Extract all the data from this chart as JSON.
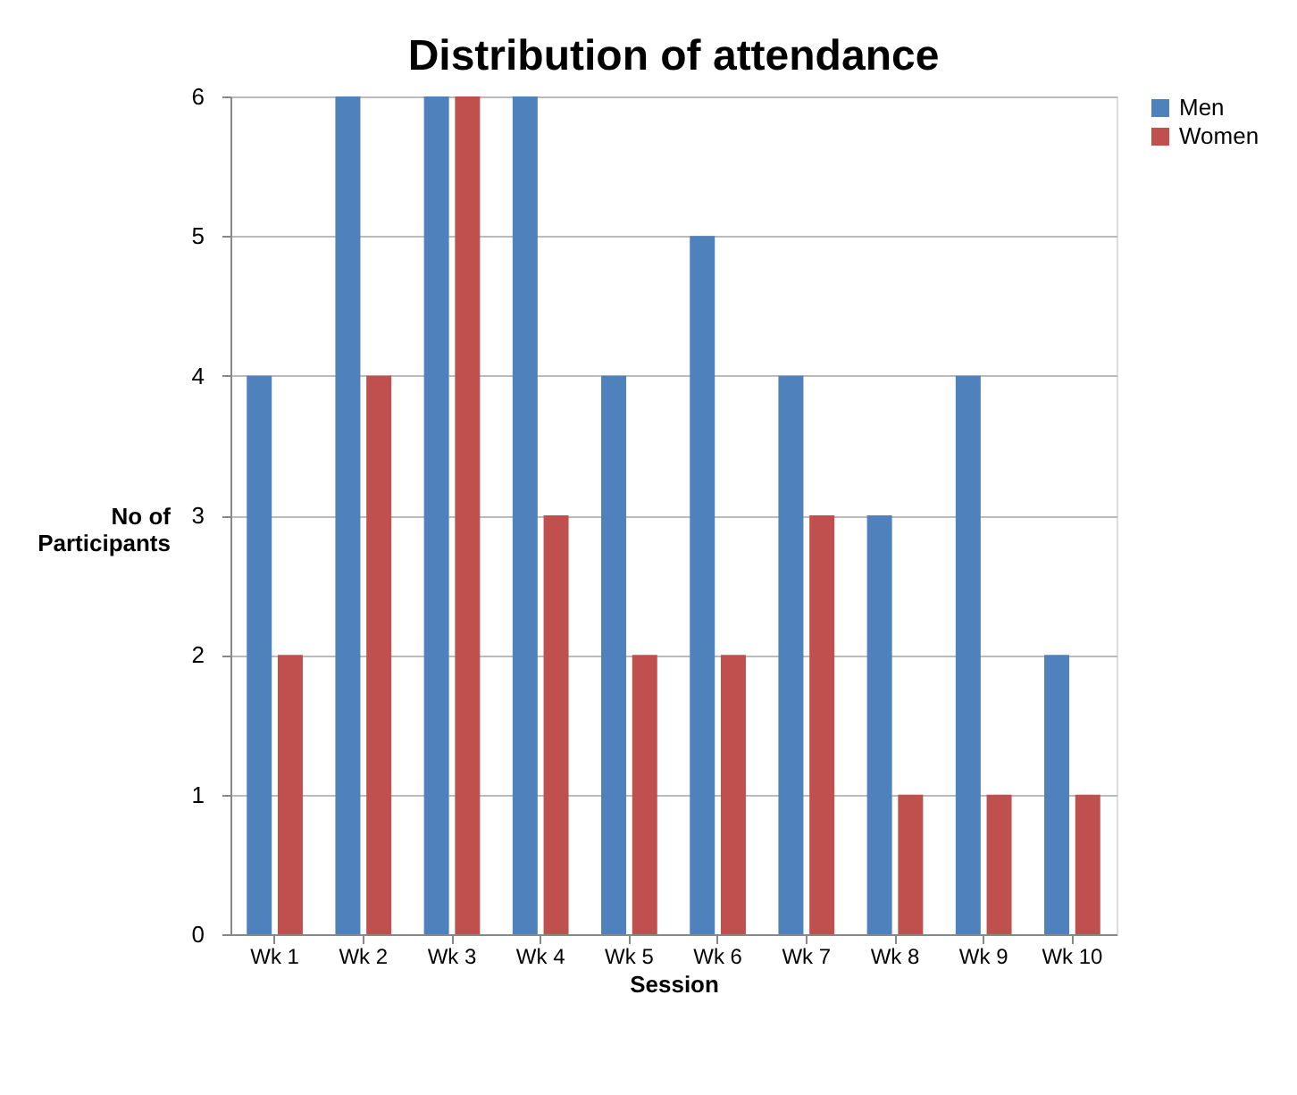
{
  "chart_data": {
    "type": "bar",
    "title": "Distribution of attendance",
    "xlabel": "Session",
    "ylabel": "No of Participants",
    "categories": [
      "Wk 1",
      "Wk 2",
      "Wk 3",
      "Wk 4",
      "Wk 5",
      "Wk 6",
      "Wk 7",
      "Wk 8",
      "Wk 9",
      "Wk 10"
    ],
    "series": [
      {
        "name": "Men",
        "color": "#4f81bd",
        "values": [
          4,
          6,
          6,
          6,
          4,
          5,
          4,
          3,
          4,
          2
        ]
      },
      {
        "name": "Women",
        "color": "#c0504d",
        "values": [
          2,
          4,
          6,
          3,
          2,
          2,
          3,
          1,
          1,
          1
        ]
      }
    ],
    "ylim": [
      0,
      6
    ],
    "yticks": [
      0,
      1,
      2,
      3,
      4,
      5,
      6
    ],
    "grid": "y",
    "legend": "right"
  }
}
